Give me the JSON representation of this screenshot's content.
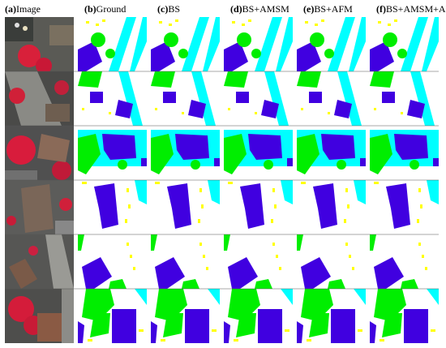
{
  "headers": [
    {
      "letter": "(a)",
      "text": "Image"
    },
    {
      "letter": "(b)",
      "text": "Ground"
    },
    {
      "letter": "(c)",
      "text": "BS"
    },
    {
      "letter": "(d)",
      "text": "BS+AMSM"
    },
    {
      "letter": "(e)",
      "text": "BS+AFM"
    },
    {
      "letter": "(f)",
      "text": "BS+AMSM+AFM"
    }
  ]
}
